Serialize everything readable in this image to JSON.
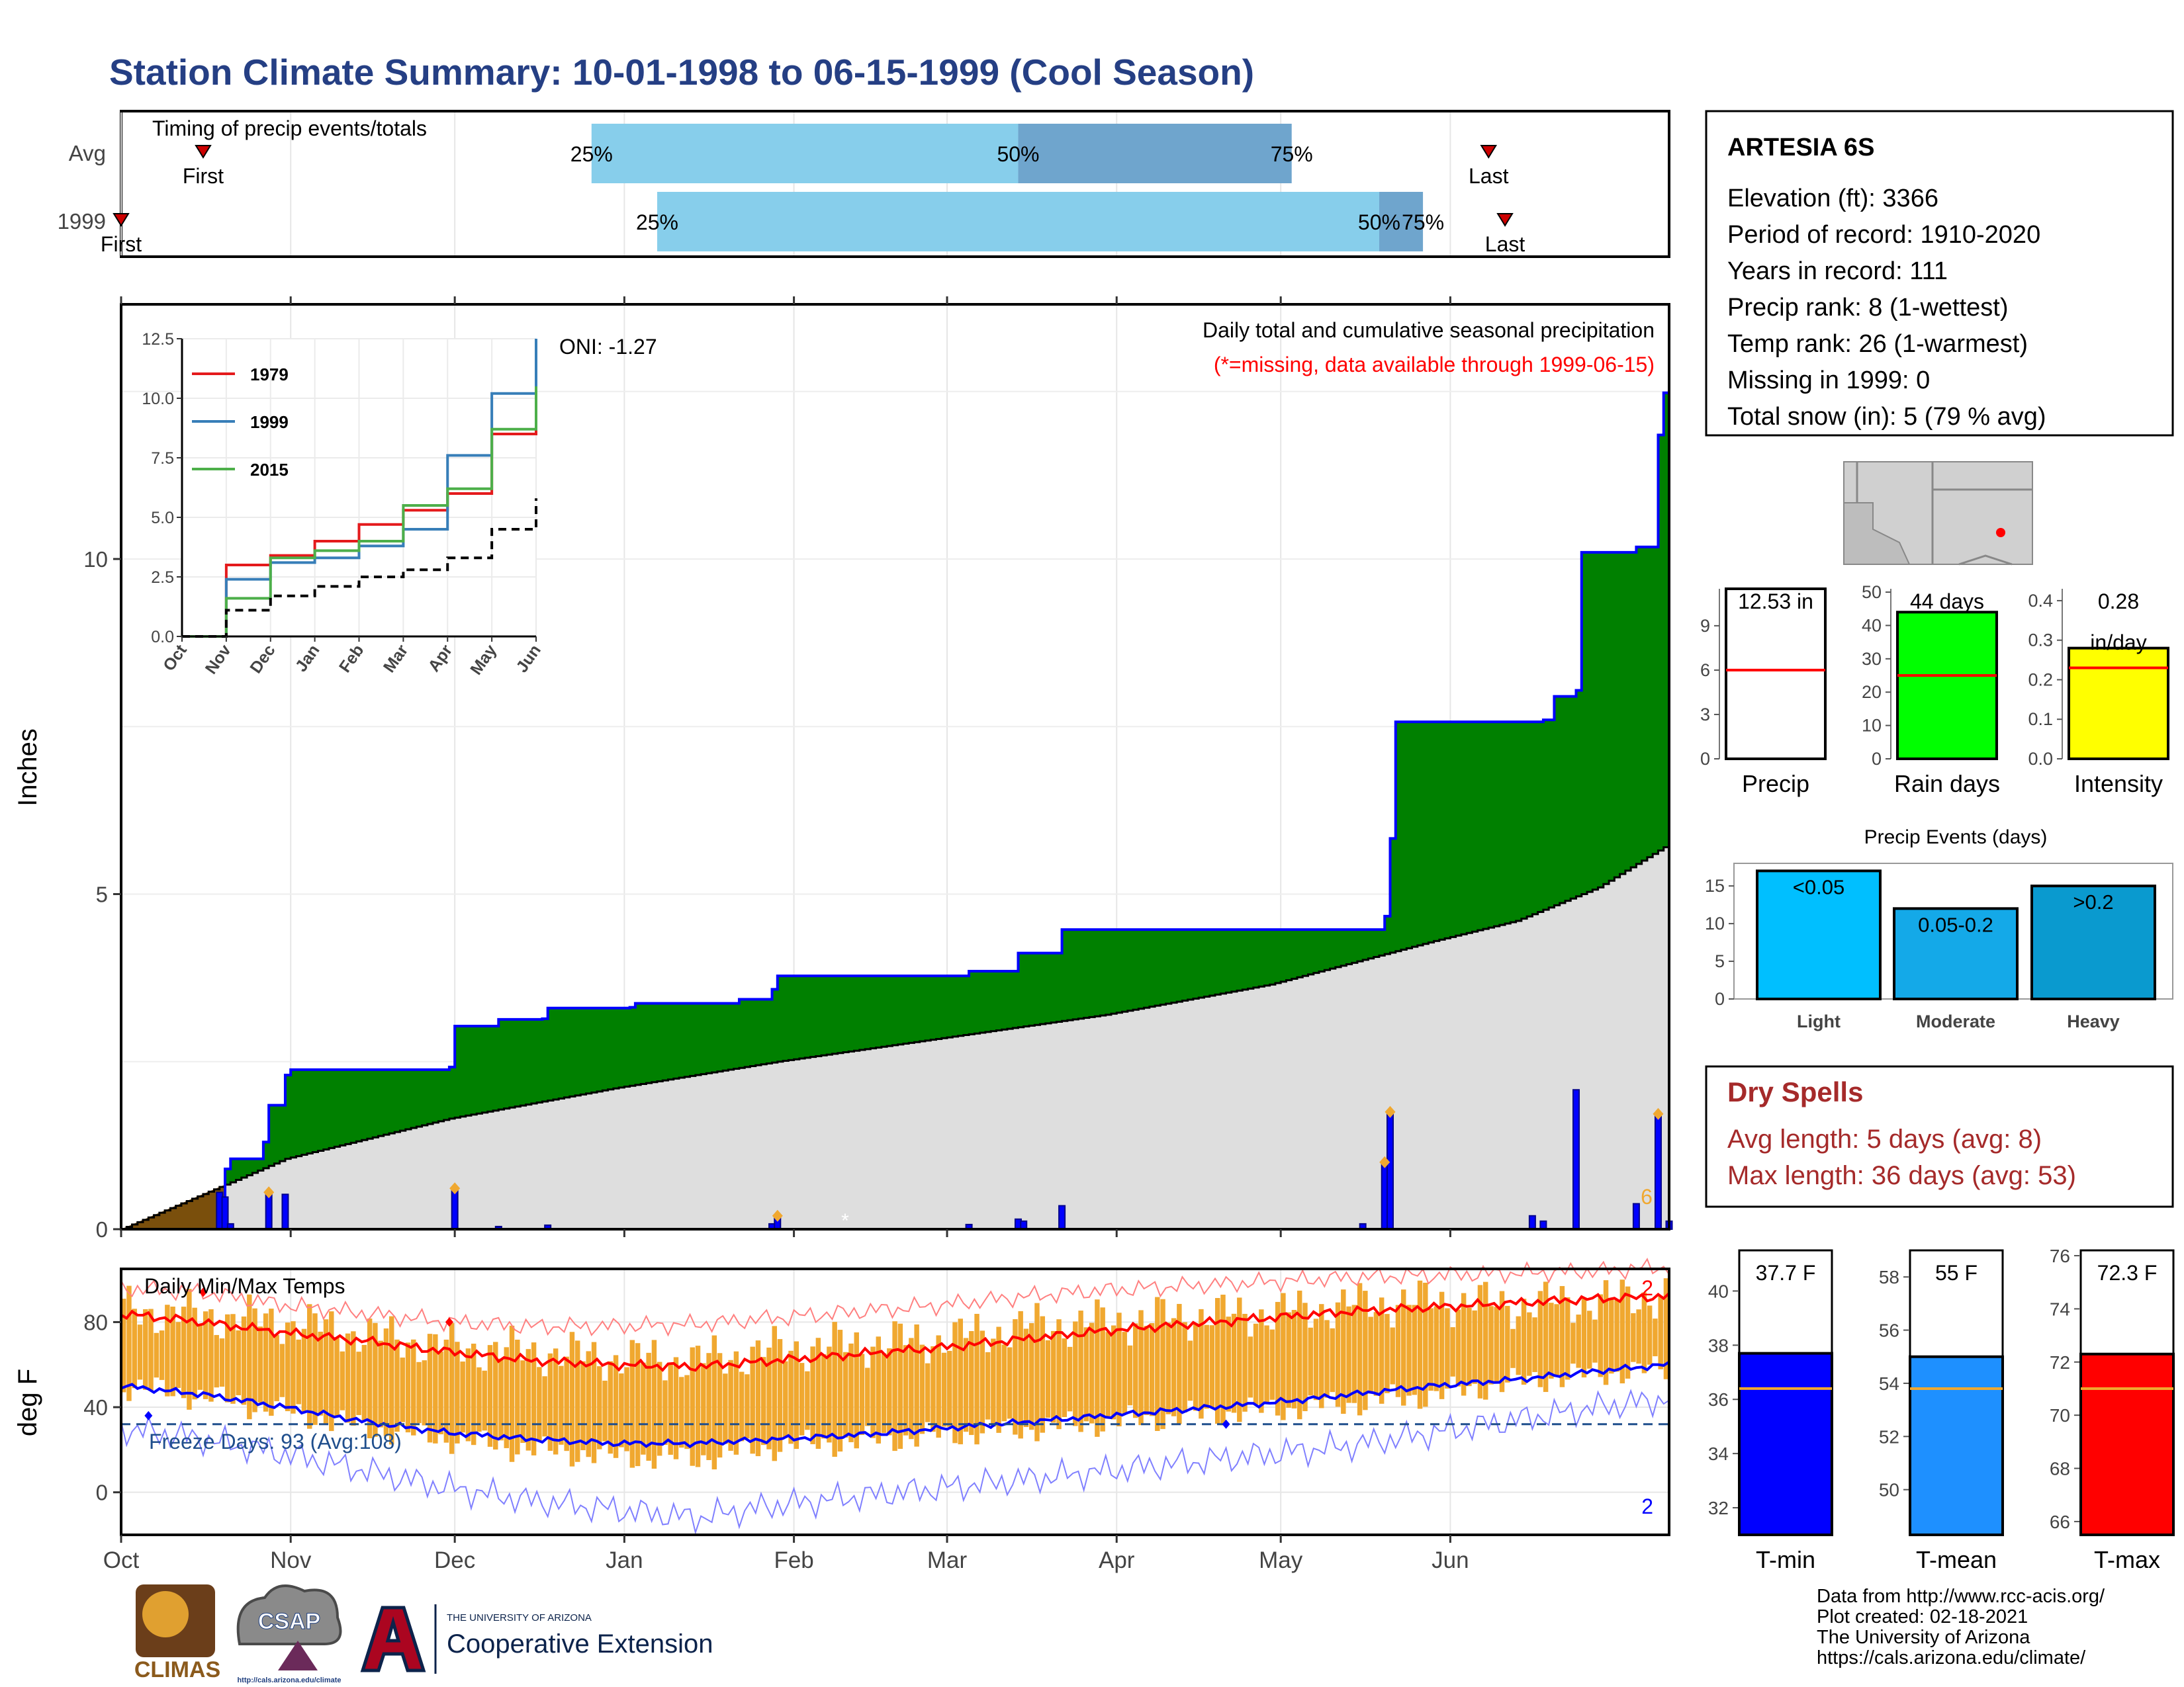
{
  "header": {
    "title": "Station Climate Summary: 10-01-1998 to 06-15-1999 (Cool Season)"
  },
  "colors": {
    "title": "#253F84",
    "dark_red": "#A52A2A",
    "light_blue": "#87CEEB",
    "mid_blue": "#6FA5CD",
    "green": "#008000",
    "gray_fill": "#DEDEDE",
    "brown": "#7A4F0C",
    "bar_blue": "#0000FF",
    "orange": "#F0A830",
    "red": "#FF0000",
    "blue": "#0000FF",
    "navy": "#1F4E8C"
  },
  "months": [
    "Oct",
    "Nov",
    "Dec",
    "Jan",
    "Feb",
    "Mar",
    "Apr",
    "May",
    "Jun"
  ],
  "timing_panel": {
    "title": "Timing of precip events/totals",
    "rows": [
      {
        "label": "Avg",
        "first_label": "First",
        "last_label": "Last",
        "p25_label": "25%",
        "p50_label": "50%",
        "p75_label": "75%",
        "first_day": 15,
        "p25_day": 86,
        "p50_day": 164,
        "p75_day": 214,
        "last_day": 250
      },
      {
        "label": "1999",
        "first_label": "First",
        "last_label": "Last",
        "p25_label": "25%",
        "p50_label": "50%",
        "p75_label": "75%",
        "first_day": 0,
        "p25_day": 98,
        "p50_day": 230,
        "p75_day": 238,
        "last_day": 253
      }
    ]
  },
  "precip_panel": {
    "ylabel": "Inches",
    "yticks": [
      "0",
      "5",
      "10"
    ],
    "oni_label": "ONI: -1.27",
    "subtitle": "Daily total and cumulative seasonal precipitation",
    "missing_note": "(*=missing, data available through 1999-06-15)",
    "missing_marker": "*",
    "corner_count": "6"
  },
  "inset": {
    "yticks": [
      "0.0",
      "2.5",
      "5.0",
      "7.5",
      "10.0",
      "12.5"
    ],
    "legend": [
      {
        "name": "1979",
        "color": "#E41A1C"
      },
      {
        "name": "1999",
        "color": "#377EB8"
      },
      {
        "name": "2015",
        "color": "#4DAF4A"
      }
    ]
  },
  "temp_panel": {
    "title": "Daily Min/Max Temps",
    "ylabel": "deg F",
    "yticks": [
      "0",
      "40",
      "80"
    ],
    "freeze_label": "Freeze Days: 93 (Avg:108)",
    "max_count": "2",
    "min_count": "2"
  },
  "station_box": {
    "name": "ARTESIA 6S",
    "lines": [
      "Elevation (ft): 3366",
      "Period of record: 1910-2020",
      "Years in record: 111",
      "Precip rank: 8 (1-wettest)",
      "Temp rank: 26 (1-warmest)",
      "Missing in 1999: 0",
      "Total snow (in): 5 (79 % avg)"
    ]
  },
  "summary_bars": [
    {
      "label": "Precip",
      "value_label": "12.53 in",
      "value": 12.53,
      "avg": 6.0,
      "ymax": 11.5,
      "ticks": [
        "0",
        "3",
        "6",
        "9"
      ],
      "tickvals": [
        0,
        3,
        6,
        9
      ],
      "color": "#FFFFFF"
    },
    {
      "label": "Rain days",
      "value_label": "44 days",
      "value": 44,
      "avg": 25,
      "ymax": 51,
      "ticks": [
        "0",
        "10",
        "20",
        "30",
        "40",
        "50"
      ],
      "tickvals": [
        0,
        10,
        20,
        30,
        40,
        50
      ],
      "color": "#00FF00"
    },
    {
      "label": "Intensity",
      "value_label": "0.28",
      "value_label2": "in/day",
      "value": 0.28,
      "avg": 0.23,
      "ymax": 0.43,
      "ticks": [
        "0.0",
        "0.1",
        "0.2",
        "0.3",
        "0.4"
      ],
      "tickvals": [
        0,
        0.1,
        0.2,
        0.3,
        0.4
      ],
      "color": "#FFFF00"
    }
  ],
  "precip_events": {
    "title": "Precip Events (days)",
    "ticks": [
      "0",
      "5",
      "10",
      "15"
    ],
    "ymax": 18,
    "bars": [
      {
        "category": "Light",
        "range": "<0.05",
        "value": 17,
        "color": "#00BFFF"
      },
      {
        "category": "Moderate",
        "range": "0.05-0.2",
        "value": 12,
        "color": "#14A9E8"
      },
      {
        "category": "Heavy",
        "range": ">0.2",
        "value": 15,
        "color": "#0A9ACF"
      }
    ]
  },
  "dry_spells": {
    "title": "Dry Spells",
    "avg_line": "Avg length: 5 days (avg: 8)",
    "max_line": "Max length: 36 days (avg: 53)"
  },
  "temp_bars": [
    {
      "label": "T-min",
      "value_label": "37.7 F",
      "value": 37.7,
      "avg": 36.4,
      "ymin": 31,
      "ymax": 41.5,
      "ticks": [
        "32",
        "34",
        "36",
        "38",
        "40"
      ],
      "tickvals": [
        32,
        34,
        36,
        38,
        40
      ],
      "color": "#0000FF"
    },
    {
      "label": "T-mean",
      "value_label": "55 F",
      "value": 55.0,
      "avg": 53.8,
      "ymin": 48.3,
      "ymax": 59,
      "ticks": [
        "50",
        "52",
        "54",
        "56",
        "58"
      ],
      "tickvals": [
        50,
        52,
        54,
        56,
        58
      ],
      "color": "#1E90FF"
    },
    {
      "label": "T-max",
      "value_label": "72.3 F",
      "value": 72.3,
      "avg": 71.0,
      "ymin": 65.5,
      "ymax": 76.2,
      "ticks": [
        "66",
        "68",
        "70",
        "72",
        "74",
        "76"
      ],
      "tickvals": [
        66,
        68,
        70,
        72,
        74,
        76
      ],
      "color": "#FF0000"
    }
  ],
  "logos": {
    "climas": "CLIMAS",
    "csap": "CSAP",
    "csap_url": "http://cals.arizona.edu/climate",
    "ua_small": "THE UNIVERSITY OF ARIZONA",
    "coop": "Cooperative Extension"
  },
  "footer": {
    "lines": [
      "Data from http://www.rcc-acis.org/",
      "Plot created: 02-18-2021",
      "The University of Arizona",
      "https://cals.arizona.edu/climate/"
    ]
  },
  "chart_data": [
    {
      "type": "area",
      "title": "Daily total and cumulative seasonal precipitation",
      "ylabel": "Inches",
      "ylim": [
        0,
        13.8
      ],
      "x_unit": "day of season (0 = Oct 1 1998)",
      "cumulative_1999": [
        [
          0,
          0
        ],
        [
          18,
          0
        ],
        [
          19,
          0.9
        ],
        [
          20,
          1.05
        ],
        [
          26,
          1.3
        ],
        [
          27,
          1.85
        ],
        [
          30,
          2.3
        ],
        [
          31,
          2.38
        ],
        [
          60,
          2.42
        ],
        [
          61,
          3.03
        ],
        [
          69,
          3.13
        ],
        [
          77,
          3.14
        ],
        [
          78,
          3.3
        ],
        [
          93,
          3.31
        ],
        [
          94,
          3.37
        ],
        [
          113,
          3.43
        ],
        [
          119,
          3.58
        ],
        [
          120,
          3.78
        ],
        [
          155,
          3.85
        ],
        [
          164,
          4.12
        ],
        [
          172,
          4.47
        ],
        [
          231,
          4.67
        ],
        [
          232,
          5.83
        ],
        [
          233,
          7.57
        ],
        [
          260,
          7.6
        ],
        [
          262,
          7.95
        ],
        [
          266,
          8.04
        ],
        [
          267,
          10.1
        ],
        [
          277,
          10.18
        ],
        [
          281,
          11.85
        ],
        [
          282,
          12.48
        ],
        [
          283,
          12.53
        ]
      ],
      "cumulative_avg": [
        [
          0,
          0.0
        ],
        [
          30,
          1.05
        ],
        [
          60,
          1.65
        ],
        [
          90,
          2.1
        ],
        [
          120,
          2.5
        ],
        [
          150,
          2.85
        ],
        [
          180,
          3.2
        ],
        [
          210,
          3.65
        ],
        [
          240,
          4.3
        ],
        [
          255,
          4.6
        ],
        [
          270,
          5.1
        ],
        [
          283,
          5.75
        ]
      ],
      "daily_totals": [
        [
          18,
          0.55
        ],
        [
          19,
          0.48
        ],
        [
          20,
          0.08
        ],
        [
          27,
          0.55
        ],
        [
          30,
          0.52
        ],
        [
          61,
          0.61
        ],
        [
          69,
          0.04
        ],
        [
          78,
          0.06
        ],
        [
          119,
          0.08
        ],
        [
          120,
          0.2
        ],
        [
          155,
          0.07
        ],
        [
          164,
          0.15
        ],
        [
          165,
          0.12
        ],
        [
          172,
          0.35
        ],
        [
          227,
          0.08
        ],
        [
          231,
          1.0
        ],
        [
          232,
          1.75
        ],
        [
          258,
          0.2
        ],
        [
          260,
          0.12
        ],
        [
          266,
          2.08
        ],
        [
          277,
          0.38
        ],
        [
          281,
          1.72
        ],
        [
          283,
          0.12
        ]
      ],
      "event_markers": [
        [
          27,
          0.55
        ],
        [
          61,
          0.61
        ],
        [
          120,
          0.2
        ],
        [
          231,
          1.0
        ],
        [
          232,
          1.75
        ],
        [
          281,
          1.72
        ]
      ]
    },
    {
      "type": "line",
      "title": "",
      "x": [
        "Oct",
        "Nov",
        "Dec",
        "Jan",
        "Feb",
        "Mar",
        "Apr",
        "May",
        "Jun"
      ],
      "ylim": [
        0,
        12.5
      ],
      "series": [
        {
          "name": "1979",
          "values": [
            0.0,
            3.0,
            3.4,
            4.0,
            4.7,
            5.3,
            6.0,
            8.5,
            10.4
          ]
        },
        {
          "name": "1999",
          "values": [
            0.0,
            2.4,
            3.1,
            3.3,
            3.8,
            4.5,
            7.6,
            10.2,
            12.5
          ]
        },
        {
          "name": "2015",
          "values": [
            0.0,
            1.6,
            3.3,
            3.6,
            4.0,
            5.5,
            6.2,
            8.7,
            10.5
          ]
        },
        {
          "name": "",
          "values": [
            0.0,
            1.1,
            1.7,
            2.1,
            2.5,
            2.8,
            3.3,
            4.5,
            5.8
          ]
        }
      ]
    },
    {
      "type": "line",
      "title": "Daily Min/Max Temps",
      "ylabel": "deg F",
      "ylim": [
        -20,
        105
      ],
      "x": [
        0,
        15,
        30,
        45,
        60,
        75,
        90,
        105,
        120,
        135,
        150,
        165,
        180,
        195,
        210,
        225,
        240,
        255,
        270,
        283
      ],
      "series": [
        {
          "name": "avg max",
          "values": [
            84,
            80,
            75,
            71,
            66,
            62,
            60,
            59,
            62,
            65,
            68,
            72,
            76,
            79,
            82,
            85,
            87,
            89,
            91,
            92
          ]
        },
        {
          "name": "avg min",
          "values": [
            50,
            46,
            40,
            33,
            28,
            25,
            23,
            23,
            25,
            27,
            30,
            33,
            36,
            39,
            42,
            46,
            50,
            53,
            57,
            60
          ]
        },
        {
          "name": "record high",
          "values": [
            96,
            94,
            88,
            84,
            80,
            78,
            78,
            79,
            82,
            85,
            88,
            92,
            95,
            97,
            99,
            101,
            102,
            103,
            104,
            106
          ]
        },
        {
          "name": "record low",
          "values": [
            30,
            25,
            18,
            10,
            2,
            -4,
            -8,
            -12,
            -6,
            -2,
            2,
            6,
            10,
            14,
            18,
            22,
            28,
            34,
            40,
            44
          ]
        },
        {
          "name": "daily max 1999",
          "values": [
            86,
            83,
            80,
            74,
            68,
            66,
            63,
            62,
            67,
            70,
            72,
            78,
            80,
            83,
            84,
            88,
            90,
            88,
            90,
            93
          ]
        },
        {
          "name": "daily min 1999",
          "values": [
            50,
            45,
            38,
            30,
            25,
            20,
            17,
            16,
            22,
            24,
            27,
            30,
            33,
            36,
            39,
            42,
            46,
            52,
            56,
            58
          ]
        }
      ],
      "freeze_line": 32
    }
  ]
}
